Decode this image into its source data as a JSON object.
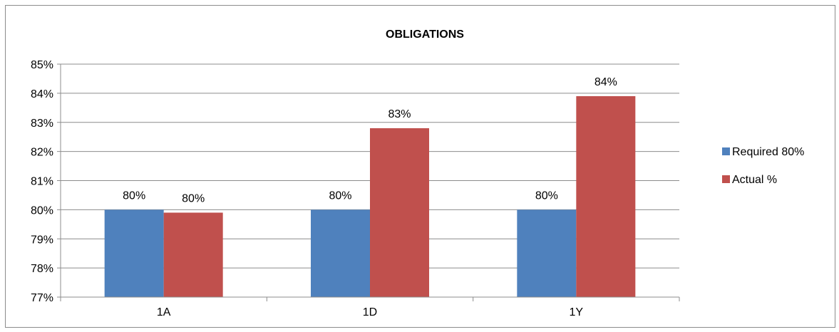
{
  "chart_data": {
    "type": "bar",
    "title": "OBLIGATIONS",
    "xlabel": "",
    "ylabel": "",
    "categories": [
      "1A",
      "1D",
      "1Y"
    ],
    "ylim": [
      77,
      85
    ],
    "yticks": [
      "77%",
      "78%",
      "79%",
      "80%",
      "81%",
      "82%",
      "83%",
      "84%",
      "85%"
    ],
    "grid": true,
    "legend_position": "right",
    "series": [
      {
        "name": "Required 80%",
        "color": "#4f81bd",
        "values": [
          80,
          80,
          80
        ],
        "labels": [
          "80%",
          "80%",
          "80%"
        ]
      },
      {
        "name": "Actual %",
        "color": "#c0504d",
        "values": [
          79.9,
          82.8,
          83.9
        ],
        "labels": [
          "80%",
          "83%",
          "84%"
        ]
      }
    ]
  }
}
